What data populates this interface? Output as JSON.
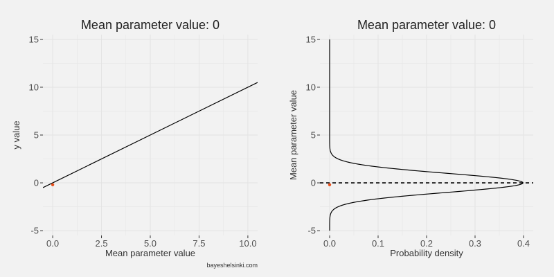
{
  "credit": "bayeshelsinki.com",
  "chart_data": [
    {
      "type": "line",
      "title": "Mean parameter value: 0",
      "xlabel": "Mean parameter value",
      "ylabel": "y value",
      "xlim": [
        -0.5,
        10.5
      ],
      "ylim": [
        -5.5,
        15.5
      ],
      "x_ticks": [
        0,
        2.5,
        5,
        7.5,
        10
      ],
      "x_tick_labels": [
        "0.0",
        "2.5",
        "5.0",
        "7.5",
        "10.0"
      ],
      "y_ticks": [
        -5,
        0,
        5,
        10,
        15
      ],
      "y_tick_labels": [
        "-5",
        "0",
        "5",
        "10",
        "15"
      ],
      "grid": true,
      "series": [
        {
          "x": [
            -0.5,
            10.5
          ],
          "y": [
            -0.5,
            10.5
          ],
          "color": "#000000"
        }
      ],
      "points": [
        {
          "x": 0,
          "y": -0.2,
          "color": "#e8501b"
        }
      ]
    },
    {
      "type": "line",
      "title": "Mean parameter value: 0",
      "xlabel": "Probability density",
      "ylabel": "Mean parameter value",
      "xlim": [
        -0.02,
        0.42
      ],
      "ylim": [
        -5.5,
        15.5
      ],
      "x_ticks": [
        0,
        0.1,
        0.2,
        0.3,
        0.4
      ],
      "x_tick_labels": [
        "0.0",
        "0.1",
        "0.2",
        "0.3",
        "0.4"
      ],
      "y_ticks": [
        -5,
        0,
        5,
        10,
        15
      ],
      "y_tick_labels": [
        "-5",
        "0",
        "5",
        "10",
        "15"
      ],
      "grid": true,
      "density": {
        "distribution": "normal",
        "mean": 0,
        "sd": 1,
        "y_range": [
          -5,
          15
        ],
        "color": "#000000"
      },
      "hline": {
        "y": 0,
        "style": "dashed",
        "color": "#000000"
      },
      "points": [
        {
          "x": 0,
          "y": -0.2,
          "color": "#e8501b"
        }
      ]
    }
  ]
}
